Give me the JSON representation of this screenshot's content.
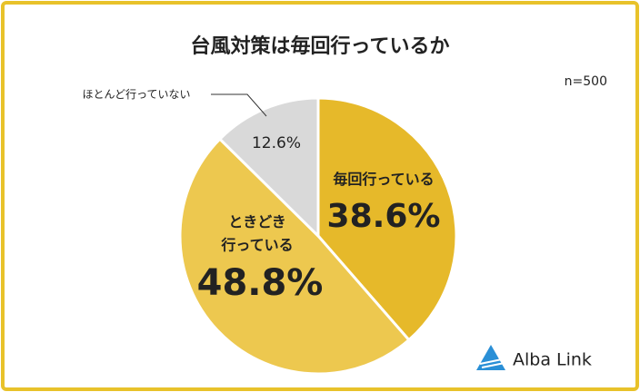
{
  "chart_data": {
    "type": "pie",
    "title": "台風対策は毎回行っているか",
    "note": "n=500",
    "categories": [
      "毎回行っている",
      "ときどき\n行っている",
      "ほとんど行っていない"
    ],
    "values": [
      38.6,
      48.8,
      12.6
    ],
    "value_labels": [
      "38.6%",
      "48.8%",
      "12.6%"
    ],
    "colors": [
      "#e6b92a",
      "#edc84f",
      "#d9d9d9"
    ]
  },
  "logo": "Alba Link"
}
